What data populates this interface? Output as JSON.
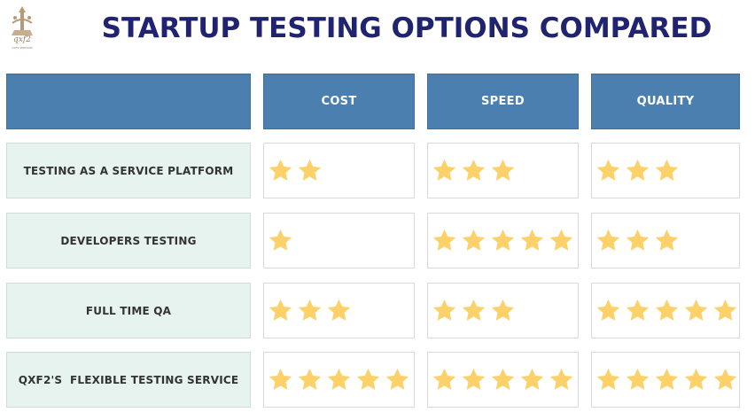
{
  "title": "STARTUP TESTING OPTIONS COMPARED",
  "logo": {
    "text": "qxf2",
    "subtext": "QXF2 SERVICES"
  },
  "header": {
    "corner": "",
    "columns": [
      "COST",
      "SPEED",
      "QUALITY"
    ]
  },
  "star_color": "#fcd16a",
  "max_rating": 5,
  "rows": [
    {
      "label": "TESTING AS A SERVICE PLATFORM",
      "ratings": [
        2,
        3,
        3
      ]
    },
    {
      "label": "DEVELOPERS TESTING",
      "ratings": [
        1,
        5,
        3
      ]
    },
    {
      "label": "FULL TIME QA",
      "ratings": [
        3,
        3,
        5
      ]
    },
    {
      "label": "QXF2'S  FLEXIBLE TESTING SERVICE",
      "ratings": [
        5,
        5,
        5
      ]
    }
  ]
}
